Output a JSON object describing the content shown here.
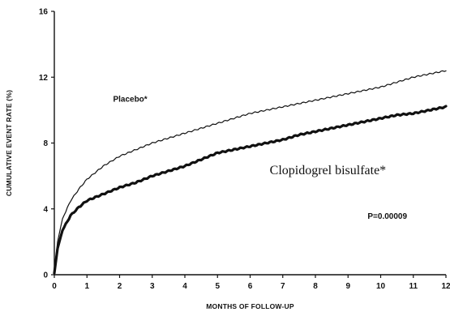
{
  "chart_data": {
    "type": "line",
    "title": "",
    "xlabel": "MONTHS OF FOLLOW-UP",
    "ylabel": "CUMULATIVE EVENT RATE (%)",
    "xlim": [
      0,
      12
    ],
    "ylim": [
      0,
      16
    ],
    "xticks": [
      0,
      1,
      2,
      3,
      4,
      5,
      6,
      7,
      8,
      9,
      10,
      11,
      12
    ],
    "yticks": [
      0,
      4,
      8,
      12,
      16
    ],
    "xtick_labels": [
      "0",
      "1",
      "2",
      "3",
      "4",
      "5",
      "6",
      "7",
      "8",
      "9",
      "10",
      "11",
      "12"
    ],
    "ytick_labels": [
      "0",
      "4",
      "8",
      "12",
      "16"
    ],
    "grid": false,
    "series": [
      {
        "name": "Placebo*",
        "color": "#111111",
        "style": "thin",
        "x": [
          0,
          0.1,
          0.25,
          0.5,
          0.75,
          1,
          1.5,
          2,
          2.5,
          3,
          3.5,
          4,
          4.5,
          5,
          5.5,
          6,
          6.5,
          7,
          7.5,
          8,
          8.5,
          9,
          9.5,
          10,
          10.5,
          11,
          11.5,
          12
        ],
        "y": [
          0.2,
          2.0,
          3.4,
          4.5,
          5.2,
          5.8,
          6.6,
          7.2,
          7.6,
          8.0,
          8.3,
          8.6,
          8.9,
          9.2,
          9.5,
          9.8,
          10.0,
          10.2,
          10.4,
          10.6,
          10.8,
          11.0,
          11.2,
          11.4,
          11.7,
          12.0,
          12.2,
          12.4
        ]
      },
      {
        "name": "Clopidogrel bisulfate*",
        "color": "#111111",
        "style": "thick",
        "x": [
          0,
          0.1,
          0.25,
          0.5,
          0.75,
          1,
          1.5,
          2,
          2.5,
          3,
          3.5,
          4,
          4.5,
          5,
          5.5,
          6,
          6.5,
          7,
          7.5,
          8,
          8.5,
          9,
          9.5,
          10,
          10.5,
          11,
          11.5,
          12
        ],
        "y": [
          0.1,
          1.6,
          2.7,
          3.6,
          4.1,
          4.5,
          4.9,
          5.3,
          5.6,
          6.0,
          6.3,
          6.6,
          7.0,
          7.4,
          7.6,
          7.8,
          8.0,
          8.2,
          8.5,
          8.7,
          8.9,
          9.1,
          9.3,
          9.5,
          9.7,
          9.8,
          10.0,
          10.2
        ]
      }
    ],
    "annotations": [
      {
        "text": "Placebo*",
        "x": 1.8,
        "y": 10.5,
        "style": "sans"
      },
      {
        "text": "Clopidogrel bisulfate*",
        "x": 6.6,
        "y": 6.1,
        "style": "serif"
      },
      {
        "text": "P=0.00009",
        "x": 9.6,
        "y": 3.4,
        "style": "sans"
      }
    ]
  }
}
